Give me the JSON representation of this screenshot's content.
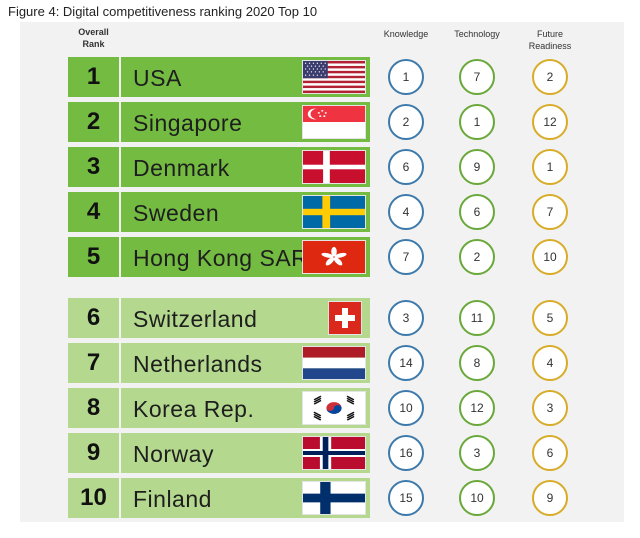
{
  "caption": "Figure 4: Digital competitiveness ranking 2020 Top 10",
  "headers": {
    "overall_line1": "Overall",
    "overall_line2": "Rank",
    "knowledge": "Knowledge",
    "technology": "Technology",
    "future_line1": "Future",
    "future_line2": "Readiness"
  },
  "colors": {
    "top5_fill": "#74bb42",
    "rest_fill": "#b4d98e",
    "knowledge_ring": "#3d7aab",
    "technology_ring": "#6aa83a",
    "future_ring": "#d8ac28"
  },
  "rows": [
    {
      "rank": "1",
      "country": "USA",
      "flag": "usa-flag-icon",
      "knowledge": "1",
      "technology": "7",
      "future": "2"
    },
    {
      "rank": "2",
      "country": "Singapore",
      "flag": "singapore-flag-icon",
      "knowledge": "2",
      "technology": "1",
      "future": "12"
    },
    {
      "rank": "3",
      "country": "Denmark",
      "flag": "denmark-flag-icon",
      "knowledge": "6",
      "technology": "9",
      "future": "1"
    },
    {
      "rank": "4",
      "country": "Sweden",
      "flag": "sweden-flag-icon",
      "knowledge": "4",
      "technology": "6",
      "future": "7"
    },
    {
      "rank": "5",
      "country": "Hong Kong SAR",
      "flag": "hong-kong-flag-icon",
      "knowledge": "7",
      "technology": "2",
      "future": "10"
    },
    {
      "rank": "6",
      "country": "Switzerland",
      "flag": "switzerland-flag-icon",
      "knowledge": "3",
      "technology": "11",
      "future": "5"
    },
    {
      "rank": "7",
      "country": "Netherlands",
      "flag": "netherlands-flag-icon",
      "knowledge": "14",
      "technology": "8",
      "future": "4"
    },
    {
      "rank": "8",
      "country": "Korea Rep.",
      "flag": "korea-flag-icon",
      "knowledge": "10",
      "technology": "12",
      "future": "3"
    },
    {
      "rank": "9",
      "country": "Norway",
      "flag": "norway-flag-icon",
      "knowledge": "16",
      "technology": "3",
      "future": "6"
    },
    {
      "rank": "10",
      "country": "Finland",
      "flag": "finland-flag-icon",
      "knowledge": "15",
      "technology": "10",
      "future": "9"
    }
  ]
}
